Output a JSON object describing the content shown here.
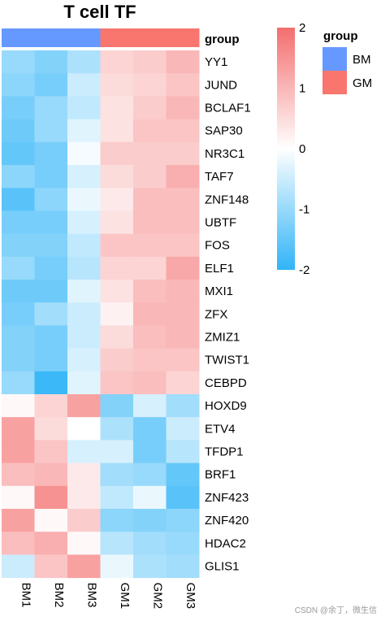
{
  "chart_data": {
    "type": "heatmap",
    "title": "T cell TF",
    "columns": [
      "BM1",
      "BM2",
      "BM3",
      "GM1",
      "GM2",
      "GM3"
    ],
    "rows": [
      "YY1",
      "JUND",
      "BCLAF1",
      "SAP30",
      "NR3C1",
      "TAF7",
      "ZNF148",
      "UBTF",
      "FOS",
      "ELF1",
      "MXI1",
      "ZFX",
      "ZMIZ1",
      "TWIST1",
      "CEBPD",
      "HOXD9",
      "ETV4",
      "TFDP1",
      "BRF1",
      "ZNF423",
      "ZNF420",
      "HDAC2",
      "GLIS1"
    ],
    "values": [
      [
        -1.0,
        -1.2,
        -0.8,
        0.6,
        0.7,
        1.0
      ],
      [
        -1.1,
        -1.3,
        -0.5,
        0.5,
        0.6,
        0.8
      ],
      [
        -1.3,
        -1.0,
        -0.6,
        0.4,
        0.7,
        1.0
      ],
      [
        -1.4,
        -1.0,
        -0.3,
        0.4,
        0.8,
        0.8
      ],
      [
        -1.5,
        -1.3,
        -0.1,
        0.7,
        0.7,
        0.7
      ],
      [
        -1.1,
        -1.3,
        -0.4,
        0.5,
        0.7,
        1.1
      ],
      [
        -1.6,
        -1.1,
        -0.2,
        0.3,
        0.9,
        0.9
      ],
      [
        -1.3,
        -1.3,
        -0.4,
        0.4,
        0.9,
        0.9
      ],
      [
        -1.2,
        -1.2,
        -0.6,
        0.8,
        0.8,
        0.8
      ],
      [
        -1.0,
        -1.3,
        -0.7,
        0.6,
        0.6,
        1.2
      ],
      [
        -1.4,
        -1.4,
        -0.3,
        0.4,
        0.9,
        1.0
      ],
      [
        -1.3,
        -0.9,
        -0.5,
        0.2,
        1.0,
        1.0
      ],
      [
        -1.2,
        -1.3,
        -0.5,
        0.5,
        0.9,
        1.0
      ],
      [
        -1.2,
        -1.3,
        -0.4,
        0.7,
        0.8,
        0.8
      ],
      [
        -1.0,
        -1.9,
        -0.3,
        0.8,
        0.9,
        0.6
      ],
      [
        0.1,
        0.6,
        1.3,
        -1.2,
        -0.4,
        -0.9
      ],
      [
        1.3,
        0.5,
        0.0,
        -0.8,
        -1.3,
        -0.5
      ],
      [
        1.3,
        0.8,
        -0.4,
        -0.4,
        -1.3,
        -0.7
      ],
      [
        0.9,
        1.0,
        0.3,
        -0.9,
        -1.0,
        -1.5
      ],
      [
        0.1,
        1.5,
        0.3,
        -0.6,
        -0.2,
        -1.6
      ],
      [
        1.3,
        0.1,
        0.7,
        -1.1,
        -1.2,
        -1.1
      ],
      [
        0.9,
        1.1,
        0.1,
        -0.7,
        -0.9,
        -1.0
      ],
      [
        -0.5,
        0.8,
        1.3,
        -0.2,
        -0.8,
        -0.9
      ]
    ],
    "scale": {
      "min": -2,
      "max": 2,
      "ticks": [
        2,
        1,
        0,
        -1,
        -2
      ],
      "low_color": "#30b4f7",
      "mid_color": "#ffffff",
      "high_color": "#f46e6e"
    },
    "annotation": {
      "name": "group",
      "values": [
        "BM",
        "BM",
        "BM",
        "GM",
        "GM",
        "GM"
      ],
      "colors": {
        "BM": "#6699ff",
        "GM": "#f8766d"
      }
    },
    "legend": {
      "title": "group",
      "entries": [
        "BM",
        "GM"
      ]
    }
  },
  "watermark": "CSDN @余丁，微生信"
}
